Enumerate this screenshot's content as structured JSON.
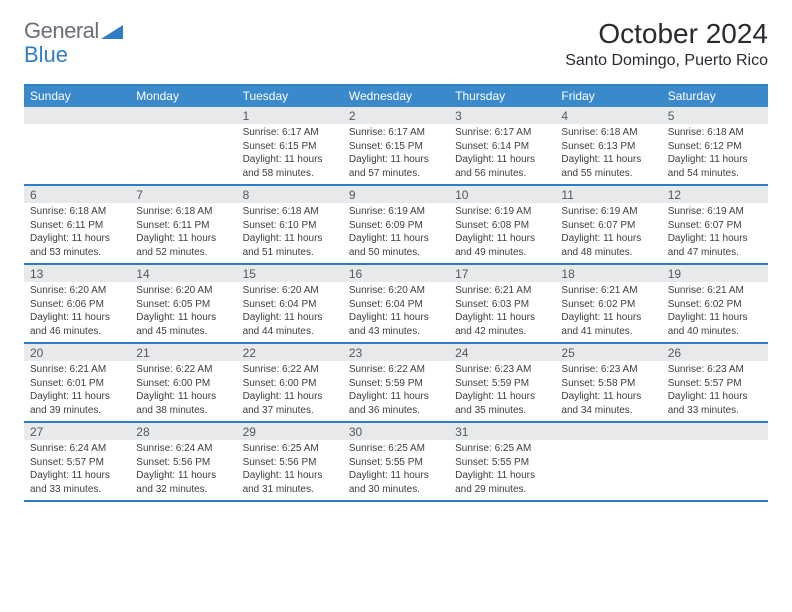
{
  "brand": {
    "part1": "General",
    "part2": "Blue"
  },
  "title": "October 2024",
  "location": "Santo Domingo, Puerto Rico",
  "colors": {
    "accent": "#3a8acb",
    "border": "#2f7dc4",
    "daynum_bg": "#e8e9ea",
    "text": "#3c4044",
    "title_text": "#272b30"
  },
  "daysOfWeek": [
    "Sunday",
    "Monday",
    "Tuesday",
    "Wednesday",
    "Thursday",
    "Friday",
    "Saturday"
  ],
  "weeks": [
    [
      {
        "n": "",
        "sr": "",
        "ss": "",
        "dl": ""
      },
      {
        "n": "",
        "sr": "",
        "ss": "",
        "dl": ""
      },
      {
        "n": "1",
        "sr": "Sunrise: 6:17 AM",
        "ss": "Sunset: 6:15 PM",
        "dl": "Daylight: 11 hours and 58 minutes."
      },
      {
        "n": "2",
        "sr": "Sunrise: 6:17 AM",
        "ss": "Sunset: 6:15 PM",
        "dl": "Daylight: 11 hours and 57 minutes."
      },
      {
        "n": "3",
        "sr": "Sunrise: 6:17 AM",
        "ss": "Sunset: 6:14 PM",
        "dl": "Daylight: 11 hours and 56 minutes."
      },
      {
        "n": "4",
        "sr": "Sunrise: 6:18 AM",
        "ss": "Sunset: 6:13 PM",
        "dl": "Daylight: 11 hours and 55 minutes."
      },
      {
        "n": "5",
        "sr": "Sunrise: 6:18 AM",
        "ss": "Sunset: 6:12 PM",
        "dl": "Daylight: 11 hours and 54 minutes."
      }
    ],
    [
      {
        "n": "6",
        "sr": "Sunrise: 6:18 AM",
        "ss": "Sunset: 6:11 PM",
        "dl": "Daylight: 11 hours and 53 minutes."
      },
      {
        "n": "7",
        "sr": "Sunrise: 6:18 AM",
        "ss": "Sunset: 6:11 PM",
        "dl": "Daylight: 11 hours and 52 minutes."
      },
      {
        "n": "8",
        "sr": "Sunrise: 6:18 AM",
        "ss": "Sunset: 6:10 PM",
        "dl": "Daylight: 11 hours and 51 minutes."
      },
      {
        "n": "9",
        "sr": "Sunrise: 6:19 AM",
        "ss": "Sunset: 6:09 PM",
        "dl": "Daylight: 11 hours and 50 minutes."
      },
      {
        "n": "10",
        "sr": "Sunrise: 6:19 AM",
        "ss": "Sunset: 6:08 PM",
        "dl": "Daylight: 11 hours and 49 minutes."
      },
      {
        "n": "11",
        "sr": "Sunrise: 6:19 AM",
        "ss": "Sunset: 6:07 PM",
        "dl": "Daylight: 11 hours and 48 minutes."
      },
      {
        "n": "12",
        "sr": "Sunrise: 6:19 AM",
        "ss": "Sunset: 6:07 PM",
        "dl": "Daylight: 11 hours and 47 minutes."
      }
    ],
    [
      {
        "n": "13",
        "sr": "Sunrise: 6:20 AM",
        "ss": "Sunset: 6:06 PM",
        "dl": "Daylight: 11 hours and 46 minutes."
      },
      {
        "n": "14",
        "sr": "Sunrise: 6:20 AM",
        "ss": "Sunset: 6:05 PM",
        "dl": "Daylight: 11 hours and 45 minutes."
      },
      {
        "n": "15",
        "sr": "Sunrise: 6:20 AM",
        "ss": "Sunset: 6:04 PM",
        "dl": "Daylight: 11 hours and 44 minutes."
      },
      {
        "n": "16",
        "sr": "Sunrise: 6:20 AM",
        "ss": "Sunset: 6:04 PM",
        "dl": "Daylight: 11 hours and 43 minutes."
      },
      {
        "n": "17",
        "sr": "Sunrise: 6:21 AM",
        "ss": "Sunset: 6:03 PM",
        "dl": "Daylight: 11 hours and 42 minutes."
      },
      {
        "n": "18",
        "sr": "Sunrise: 6:21 AM",
        "ss": "Sunset: 6:02 PM",
        "dl": "Daylight: 11 hours and 41 minutes."
      },
      {
        "n": "19",
        "sr": "Sunrise: 6:21 AM",
        "ss": "Sunset: 6:02 PM",
        "dl": "Daylight: 11 hours and 40 minutes."
      }
    ],
    [
      {
        "n": "20",
        "sr": "Sunrise: 6:21 AM",
        "ss": "Sunset: 6:01 PM",
        "dl": "Daylight: 11 hours and 39 minutes."
      },
      {
        "n": "21",
        "sr": "Sunrise: 6:22 AM",
        "ss": "Sunset: 6:00 PM",
        "dl": "Daylight: 11 hours and 38 minutes."
      },
      {
        "n": "22",
        "sr": "Sunrise: 6:22 AM",
        "ss": "Sunset: 6:00 PM",
        "dl": "Daylight: 11 hours and 37 minutes."
      },
      {
        "n": "23",
        "sr": "Sunrise: 6:22 AM",
        "ss": "Sunset: 5:59 PM",
        "dl": "Daylight: 11 hours and 36 minutes."
      },
      {
        "n": "24",
        "sr": "Sunrise: 6:23 AM",
        "ss": "Sunset: 5:59 PM",
        "dl": "Daylight: 11 hours and 35 minutes."
      },
      {
        "n": "25",
        "sr": "Sunrise: 6:23 AM",
        "ss": "Sunset: 5:58 PM",
        "dl": "Daylight: 11 hours and 34 minutes."
      },
      {
        "n": "26",
        "sr": "Sunrise: 6:23 AM",
        "ss": "Sunset: 5:57 PM",
        "dl": "Daylight: 11 hours and 33 minutes."
      }
    ],
    [
      {
        "n": "27",
        "sr": "Sunrise: 6:24 AM",
        "ss": "Sunset: 5:57 PM",
        "dl": "Daylight: 11 hours and 33 minutes."
      },
      {
        "n": "28",
        "sr": "Sunrise: 6:24 AM",
        "ss": "Sunset: 5:56 PM",
        "dl": "Daylight: 11 hours and 32 minutes."
      },
      {
        "n": "29",
        "sr": "Sunrise: 6:25 AM",
        "ss": "Sunset: 5:56 PM",
        "dl": "Daylight: 11 hours and 31 minutes."
      },
      {
        "n": "30",
        "sr": "Sunrise: 6:25 AM",
        "ss": "Sunset: 5:55 PM",
        "dl": "Daylight: 11 hours and 30 minutes."
      },
      {
        "n": "31",
        "sr": "Sunrise: 6:25 AM",
        "ss": "Sunset: 5:55 PM",
        "dl": "Daylight: 11 hours and 29 minutes."
      },
      {
        "n": "",
        "sr": "",
        "ss": "",
        "dl": ""
      },
      {
        "n": "",
        "sr": "",
        "ss": "",
        "dl": ""
      }
    ]
  ]
}
